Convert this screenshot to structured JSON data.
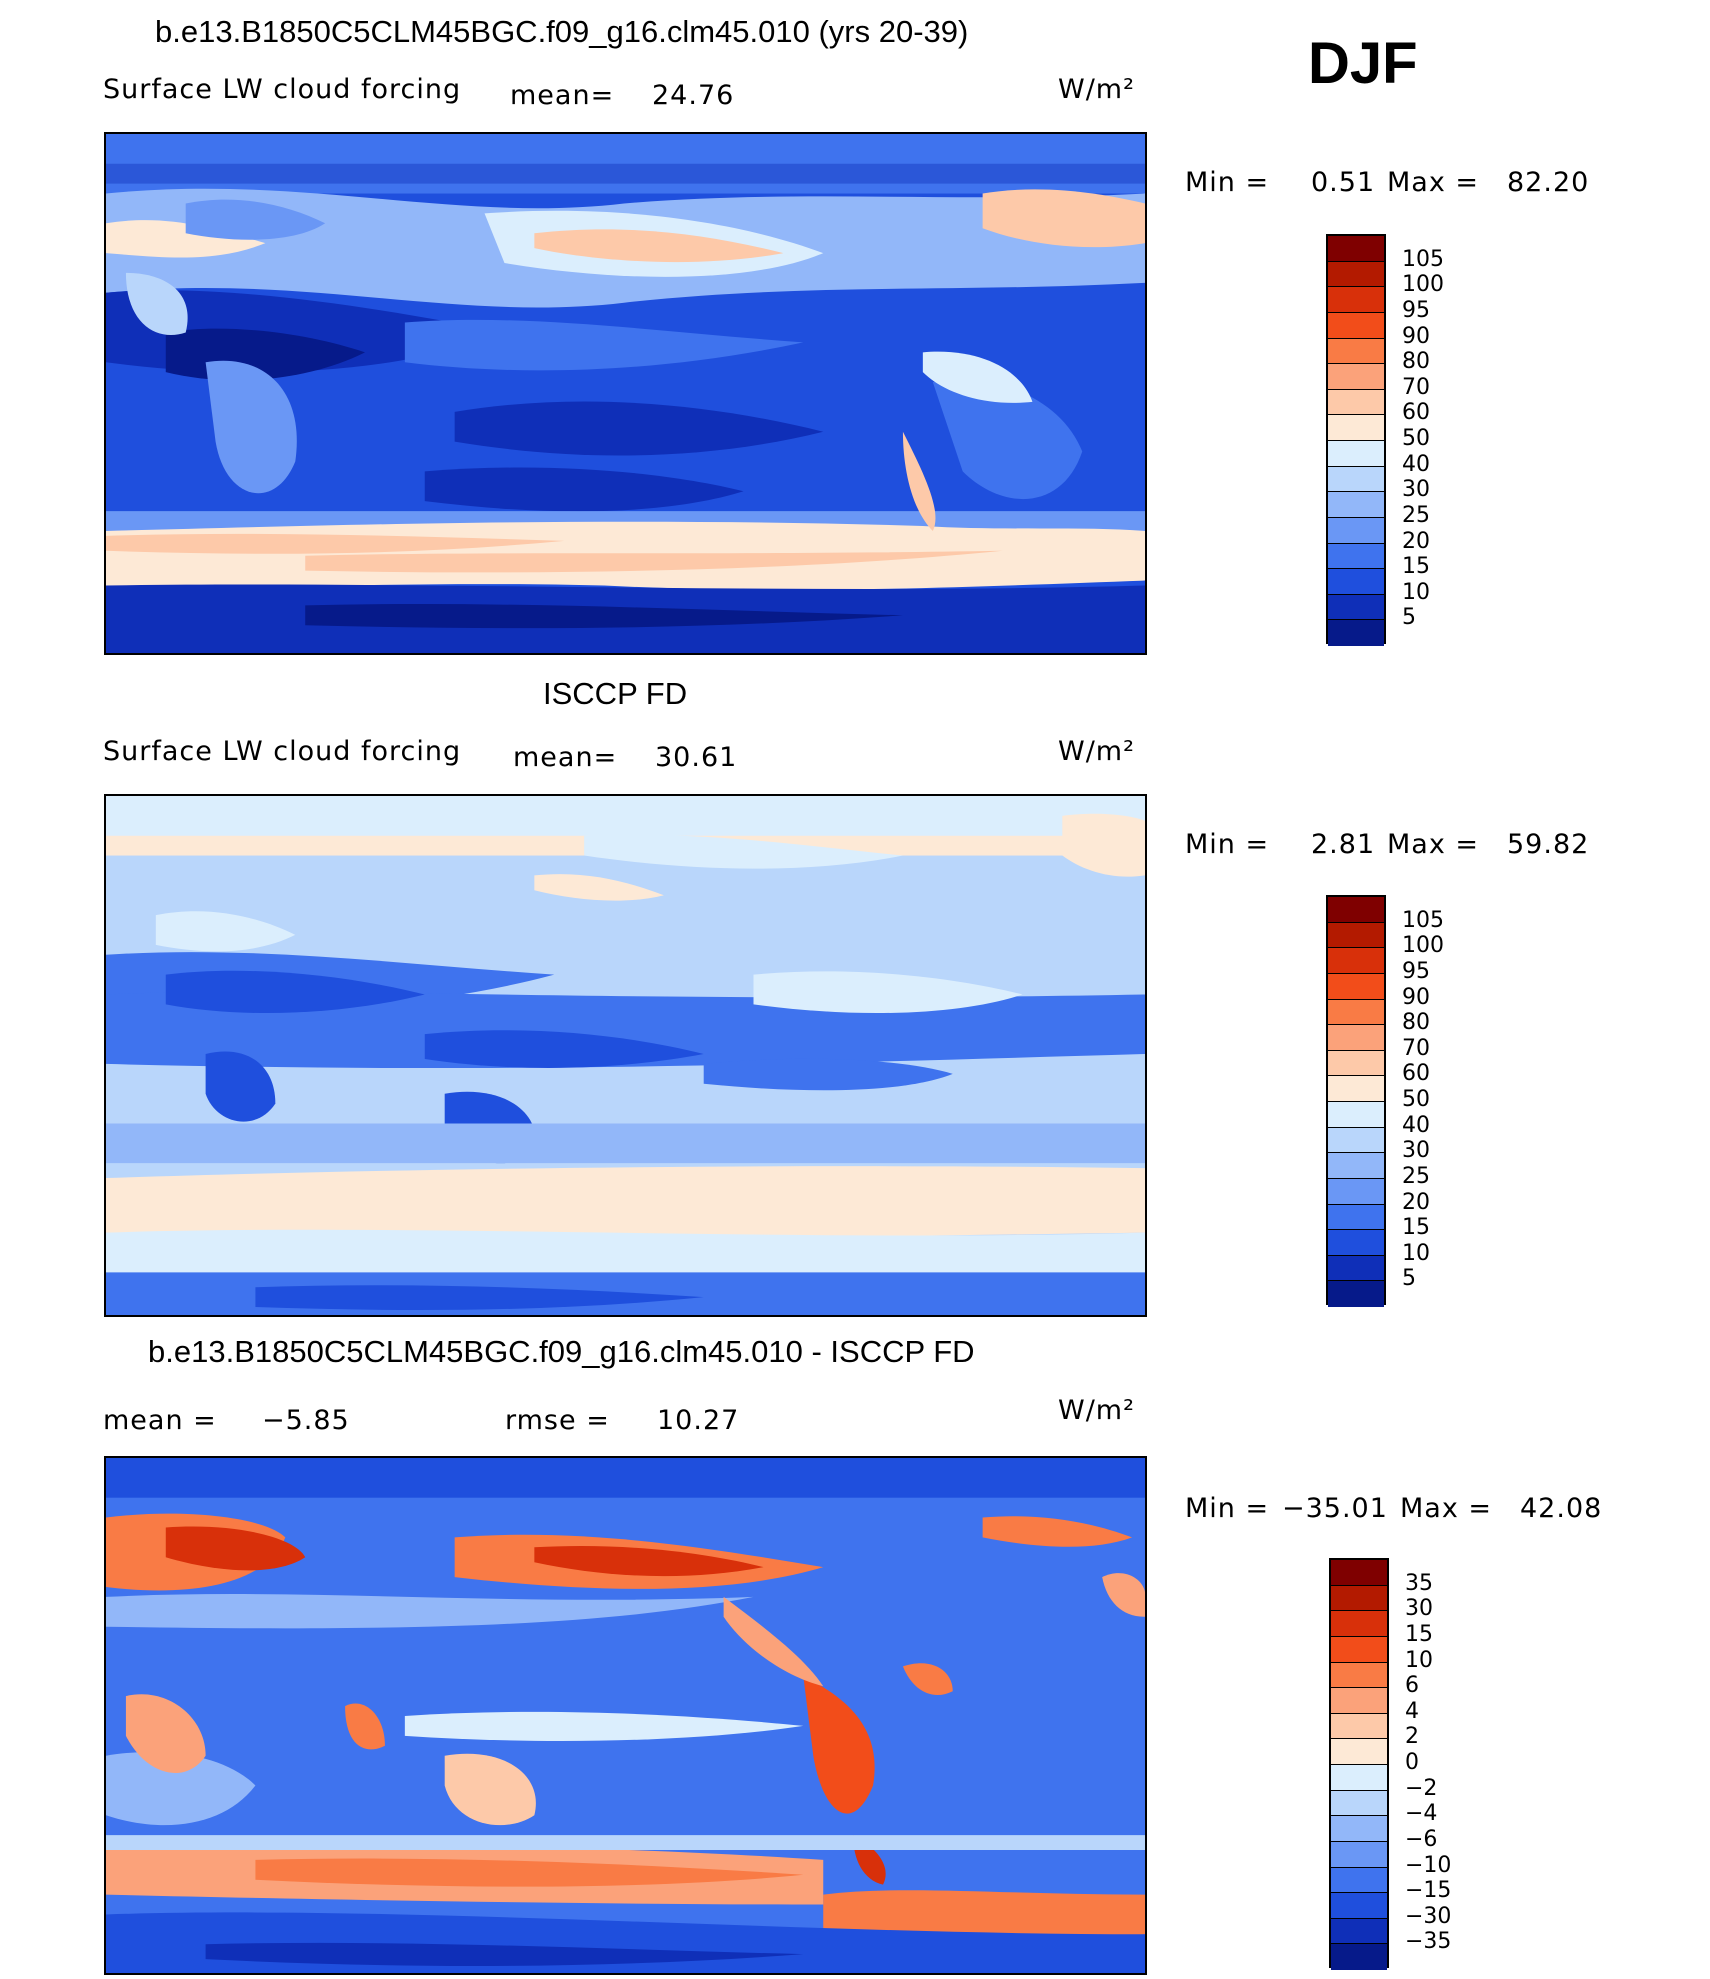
{
  "season": "DJF",
  "panels": [
    {
      "title": "b.e13.B1850C5CLM45BGC.f09_g16.clm45.010 (yrs 20-39)",
      "variable": "Surface LW cloud forcing",
      "mean_label": "mean=",
      "mean_value": "24.76",
      "units": "W/m²",
      "min_label": "Min  =",
      "min_value": "0.51",
      "max_label": "Max  =",
      "max_value": "82.20"
    },
    {
      "title": "ISCCP FD",
      "variable": "Surface LW cloud forcing",
      "mean_label": "mean=",
      "mean_value": "30.61",
      "units": "W/m²",
      "min_label": "Min  =",
      "min_value": "2.81",
      "max_label": "Max  =",
      "max_value": "59.82"
    },
    {
      "title": "b.e13.B1850C5CLM45BGC.f09_g16.clm45.010 - ISCCP FD",
      "mean_label": "mean  =",
      "mean_value": "−5.85",
      "rmse_label": "rmse  =",
      "rmse_value": "10.27",
      "units": "W/m²",
      "min_label": "Min  =",
      "min_value": "−35.01",
      "max_label": "Max  =",
      "max_value": "42.08"
    }
  ],
  "colorbar_abs": {
    "labels": [
      "105",
      "100",
      "95",
      "90",
      "80",
      "70",
      "60",
      "50",
      "40",
      "30",
      "25",
      "20",
      "15",
      "10",
      "5"
    ],
    "colors": [
      "#7f0000",
      "#b31a00",
      "#d8300a",
      "#f24d1a",
      "#f97b45",
      "#fba27a",
      "#fdc9a9",
      "#fde9d6",
      "#dbeefd",
      "#b9d6fb",
      "#92b7f9",
      "#6a97f5",
      "#3f73ee",
      "#1f4fdd",
      "#0f2fb8",
      "#061a8a"
    ]
  },
  "colorbar_diff": {
    "labels": [
      "35",
      "30",
      "15",
      "10",
      "6",
      "4",
      "2",
      "0",
      "−2",
      "−4",
      "−6",
      "−10",
      "−15",
      "−30",
      "−35"
    ],
    "colors": [
      "#7f0000",
      "#b31a00",
      "#d8300a",
      "#f24d1a",
      "#f97b45",
      "#fba27a",
      "#fdc9a9",
      "#fde9d6",
      "#dbeefd",
      "#b9d6fb",
      "#92b7f9",
      "#6a97f5",
      "#3f73ee",
      "#1f4fdd",
      "#0f2fb8",
      "#061a8a"
    ]
  }
}
